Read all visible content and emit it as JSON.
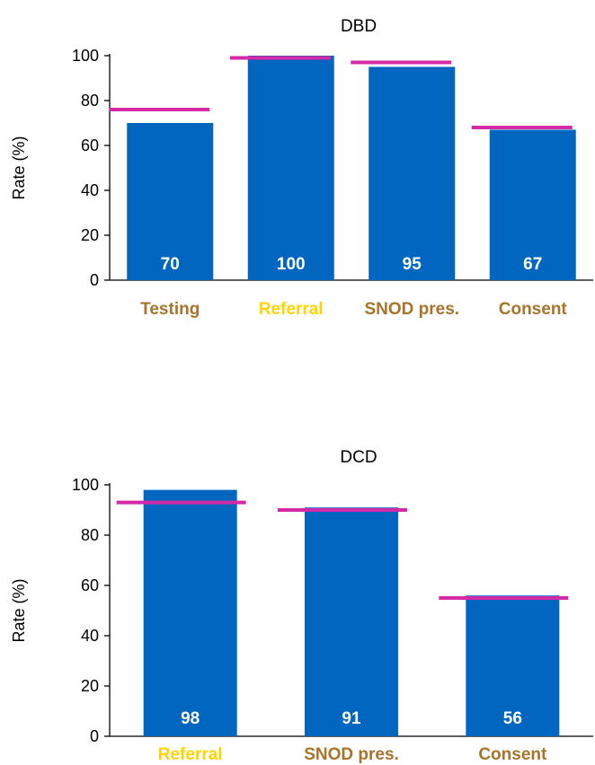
{
  "colors": {
    "bar": "#0066bf",
    "target_line": "#d42aa8",
    "category_brown": "#a8732a",
    "category_yellow": "#ffd400"
  },
  "chart_data": [
    {
      "type": "bar",
      "title": "DBD",
      "ylabel": "Rate (%)",
      "ylim": [
        0,
        100
      ],
      "yticks": [
        0,
        20,
        40,
        60,
        80,
        100
      ],
      "categories": [
        "Testing",
        "Referral",
        "SNOD pres.",
        "Consent"
      ],
      "category_colors": [
        "brown",
        "yellow",
        "brown",
        "brown"
      ],
      "values": [
        70,
        100,
        95,
        67
      ],
      "targets": [
        76,
        99,
        97,
        68
      ],
      "grid": false
    },
    {
      "type": "bar",
      "title": "DCD",
      "ylabel": "Rate (%)",
      "ylim": [
        0,
        100
      ],
      "yticks": [
        0,
        20,
        40,
        60,
        80,
        100
      ],
      "categories": [
        "Referral",
        "SNOD pres.",
        "Consent"
      ],
      "category_colors": [
        "yellow",
        "brown",
        "brown"
      ],
      "values": [
        98,
        91,
        56
      ],
      "targets": [
        93,
        90,
        55
      ],
      "grid": false
    }
  ]
}
